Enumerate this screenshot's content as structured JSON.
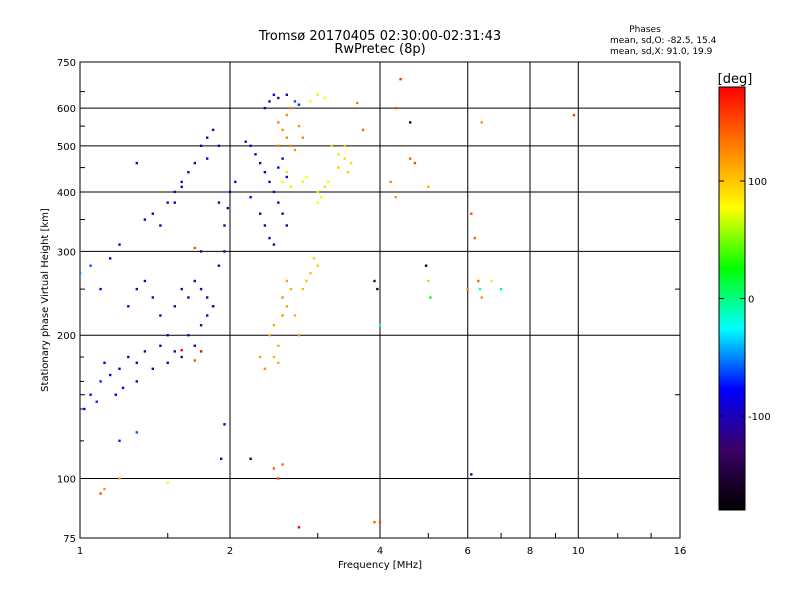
{
  "chart_data": {
    "type": "scatter",
    "title": "Tromsø 20170405 02:30:00-02:31:43",
    "subtitle": "RwPretec (8p)",
    "xlabel": "Frequency [MHz]",
    "ylabel": "Stationary phase Virtual Height [km]",
    "x_scale": "log",
    "y_scale": "log",
    "xlim": [
      1,
      16
    ],
    "ylim": [
      75,
      750
    ],
    "x_ticks": [
      1,
      2,
      4,
      6,
      8,
      10,
      16
    ],
    "y_ticks": [
      75,
      100,
      200,
      300,
      400,
      500,
      600,
      750
    ],
    "grid": true,
    "phase_info": {
      "title": "Phases",
      "line_o": "mean, sd,O: -82.5, 15.4",
      "line_x": "mean, sd,X:  91.0, 19.9"
    },
    "colorbar": {
      "label": "[deg]",
      "range": [
        -180,
        180
      ],
      "ticks": [
        "100",
        "0",
        "-100"
      ],
      "tick_values": [
        100,
        0,
        -100
      ],
      "colormap": [
        "#000000",
        "#3a0066",
        "#0000ff",
        "#00ffff",
        "#00ff00",
        "#ffff00",
        "#ff8000",
        "#ff0000"
      ]
    },
    "series": [
      {
        "values": [
          [
            1.0,
            270,
            -50
          ],
          [
            1.05,
            280,
            -60
          ],
          [
            1.02,
            140,
            -80
          ],
          [
            1.05,
            150,
            -75
          ],
          [
            1.1,
            160,
            -70
          ],
          [
            1.12,
            175,
            -85
          ],
          [
            1.15,
            165,
            -90
          ],
          [
            1.2,
            170,
            -95
          ],
          [
            1.25,
            180,
            -100
          ],
          [
            1.3,
            175,
            -95
          ],
          [
            1.18,
            150,
            -85
          ],
          [
            1.22,
            155,
            -80
          ],
          [
            1.08,
            145,
            -70
          ],
          [
            1.3,
            160,
            -90
          ],
          [
            1.35,
            185,
            -100
          ],
          [
            1.4,
            170,
            -105
          ],
          [
            1.45,
            190,
            -110
          ],
          [
            1.5,
            175,
            -100
          ],
          [
            1.55,
            185,
            -115
          ],
          [
            1.6,
            180,
            -110
          ],
          [
            1.65,
            200,
            -105
          ],
          [
            1.7,
            190,
            -110
          ],
          [
            1.75,
            210,
            -115
          ],
          [
            1.8,
            220,
            -110
          ],
          [
            1.85,
            230,
            -105
          ],
          [
            1.25,
            230,
            -100
          ],
          [
            1.3,
            250,
            -105
          ],
          [
            1.35,
            260,
            -110
          ],
          [
            1.4,
            240,
            -100
          ],
          [
            1.45,
            220,
            -105
          ],
          [
            1.5,
            200,
            -100
          ],
          [
            1.55,
            230,
            -110
          ],
          [
            1.6,
            250,
            -105
          ],
          [
            1.65,
            240,
            -110
          ],
          [
            1.7,
            260,
            -100
          ],
          [
            1.75,
            250,
            -105
          ],
          [
            1.8,
            240,
            -110
          ],
          [
            1.85,
            230,
            -100
          ],
          [
            1.9,
            280,
            -105
          ],
          [
            1.95,
            300,
            -110
          ],
          [
            1.35,
            350,
            -100
          ],
          [
            1.4,
            360,
            -105
          ],
          [
            1.45,
            340,
            -100
          ],
          [
            1.5,
            380,
            -105
          ],
          [
            1.55,
            400,
            -110
          ],
          [
            1.6,
            420,
            -105
          ],
          [
            1.65,
            440,
            -100
          ],
          [
            1.7,
            460,
            -105
          ],
          [
            1.75,
            500,
            -100
          ],
          [
            1.8,
            520,
            -110
          ],
          [
            1.85,
            540,
            -105
          ],
          [
            1.3,
            460,
            -115
          ],
          [
            1.2,
            310,
            -95
          ],
          [
            1.15,
            290,
            -90
          ],
          [
            1.1,
            250,
            -85
          ],
          [
            1.6,
            410,
            -90
          ],
          [
            1.55,
            380,
            -95
          ],
          [
            1.75,
            300,
            -110
          ],
          [
            1.95,
            340,
            -115
          ],
          [
            1.98,
            370,
            -110
          ],
          [
            2.0,
            400,
            -100
          ],
          [
            2.05,
            420,
            -95
          ],
          [
            1.9,
            380,
            -105
          ],
          [
            1.9,
            500,
            -100
          ],
          [
            1.8,
            470,
            -95
          ],
          [
            1.92,
            110,
            -110
          ],
          [
            1.95,
            130,
            -110
          ],
          [
            1.2,
            100,
            110
          ],
          [
            1.12,
            95,
            120
          ],
          [
            1.1,
            93,
            150
          ],
          [
            1.5,
            98,
            80
          ],
          [
            1.7,
            177,
            150
          ],
          [
            1.7,
            305,
            150
          ],
          [
            1.2,
            120,
            -70
          ],
          [
            1.3,
            125,
            -60
          ],
          [
            2.15,
            510,
            -100
          ],
          [
            2.2,
            500,
            -95
          ],
          [
            2.25,
            480,
            -105
          ],
          [
            2.3,
            460,
            -100
          ],
          [
            2.35,
            440,
            -110
          ],
          [
            2.4,
            420,
            -105
          ],
          [
            2.45,
            400,
            -100
          ],
          [
            2.5,
            380,
            -105
          ],
          [
            2.55,
            360,
            -110
          ],
          [
            2.6,
            340,
            -100
          ],
          [
            2.3,
            360,
            -115
          ],
          [
            2.35,
            340,
            -120
          ],
          [
            2.4,
            320,
            -115
          ],
          [
            2.45,
            310,
            -120
          ],
          [
            2.2,
            390,
            -90
          ],
          [
            2.5,
            450,
            -85
          ],
          [
            2.55,
            470,
            -80
          ],
          [
            2.6,
            430,
            -90
          ],
          [
            2.35,
            600,
            -100
          ],
          [
            2.4,
            620,
            -110
          ],
          [
            2.45,
            640,
            -100
          ],
          [
            2.6,
            640,
            -105
          ],
          [
            2.5,
            630,
            -110
          ],
          [
            2.7,
            620,
            -60
          ],
          [
            2.75,
            610,
            -70
          ],
          [
            2.5,
            560,
            130
          ],
          [
            2.55,
            540,
            120
          ],
          [
            2.6,
            520,
            125
          ],
          [
            2.65,
            500,
            130
          ],
          [
            2.7,
            490,
            120
          ],
          [
            2.6,
            580,
            125
          ],
          [
            2.65,
            600,
            130
          ],
          [
            2.75,
            550,
            120
          ],
          [
            2.8,
            520,
            125
          ],
          [
            2.5,
            500,
            130
          ],
          [
            2.55,
            420,
            80
          ],
          [
            2.6,
            440,
            90
          ],
          [
            2.65,
            410,
            85
          ],
          [
            2.8,
            420,
            70
          ],
          [
            2.85,
            430,
            75
          ],
          [
            2.9,
            620,
            80
          ],
          [
            3.0,
            640,
            70
          ],
          [
            3.1,
            630,
            75
          ],
          [
            3.2,
            500,
            95
          ],
          [
            3.3,
            480,
            90
          ],
          [
            3.4,
            470,
            95
          ],
          [
            3.5,
            460,
            90
          ],
          [
            3.3,
            450,
            100
          ],
          [
            3.45,
            440,
            95
          ],
          [
            3.4,
            500,
            100
          ],
          [
            3.0,
            400,
            85
          ],
          [
            3.05,
            390,
            80
          ],
          [
            3.1,
            410,
            90
          ],
          [
            3.15,
            420,
            85
          ],
          [
            3.0,
            380,
            80
          ],
          [
            2.4,
            200,
            110
          ],
          [
            2.45,
            210,
            115
          ],
          [
            2.5,
            190,
            110
          ],
          [
            2.55,
            220,
            120
          ],
          [
            2.6,
            230,
            115
          ],
          [
            2.45,
            180,
            105
          ],
          [
            2.5,
            175,
            110
          ],
          [
            2.55,
            240,
            120
          ],
          [
            2.6,
            260,
            115
          ],
          [
            2.65,
            250,
            110
          ],
          [
            2.7,
            220,
            110
          ],
          [
            2.75,
            200,
            120
          ],
          [
            2.8,
            250,
            105
          ],
          [
            2.85,
            260,
            100
          ],
          [
            2.9,
            270,
            100
          ],
          [
            2.95,
            290,
            95
          ],
          [
            3.0,
            280,
            100
          ],
          [
            2.3,
            180,
            115
          ],
          [
            2.35,
            170,
            120
          ],
          [
            2.45,
            105,
            140
          ],
          [
            2.5,
            100,
            150
          ],
          [
            2.55,
            107,
            140
          ],
          [
            2.75,
            79,
            180
          ],
          [
            3.9,
            81,
            140
          ],
          [
            4.0,
            81,
            150
          ],
          [
            3.6,
            615,
            130
          ],
          [
            3.7,
            540,
            140
          ],
          [
            4.3,
            600,
            150
          ],
          [
            4.4,
            690,
            160
          ],
          [
            4.6,
            560,
            -170
          ],
          [
            4.6,
            470,
            140
          ],
          [
            4.7,
            460,
            150
          ],
          [
            5.0,
            410,
            110
          ],
          [
            4.2,
            420,
            130
          ],
          [
            4.3,
            390,
            120
          ],
          [
            3.9,
            260,
            -130
          ],
          [
            3.95,
            250,
            -150
          ],
          [
            4.0,
            210,
            -20
          ],
          [
            4.95,
            280,
            -170
          ],
          [
            5.0,
            260,
            100
          ],
          [
            5.05,
            240,
            20
          ],
          [
            6.1,
            360,
            150
          ],
          [
            6.2,
            320,
            140
          ],
          [
            6.3,
            260,
            140
          ],
          [
            6.35,
            250,
            -10
          ],
          [
            6.4,
            240,
            120
          ],
          [
            6.0,
            250,
            130
          ],
          [
            6.4,
            560,
            120
          ],
          [
            6.7,
            260,
            70
          ],
          [
            7.0,
            250,
            0
          ],
          [
            6.1,
            102,
            -120
          ],
          [
            9.8,
            580,
            160
          ],
          [
            1.6,
            186,
            180
          ],
          [
            1.75,
            185,
            180
          ],
          [
            2.2,
            110,
            -150
          ]
        ]
      }
    ]
  }
}
